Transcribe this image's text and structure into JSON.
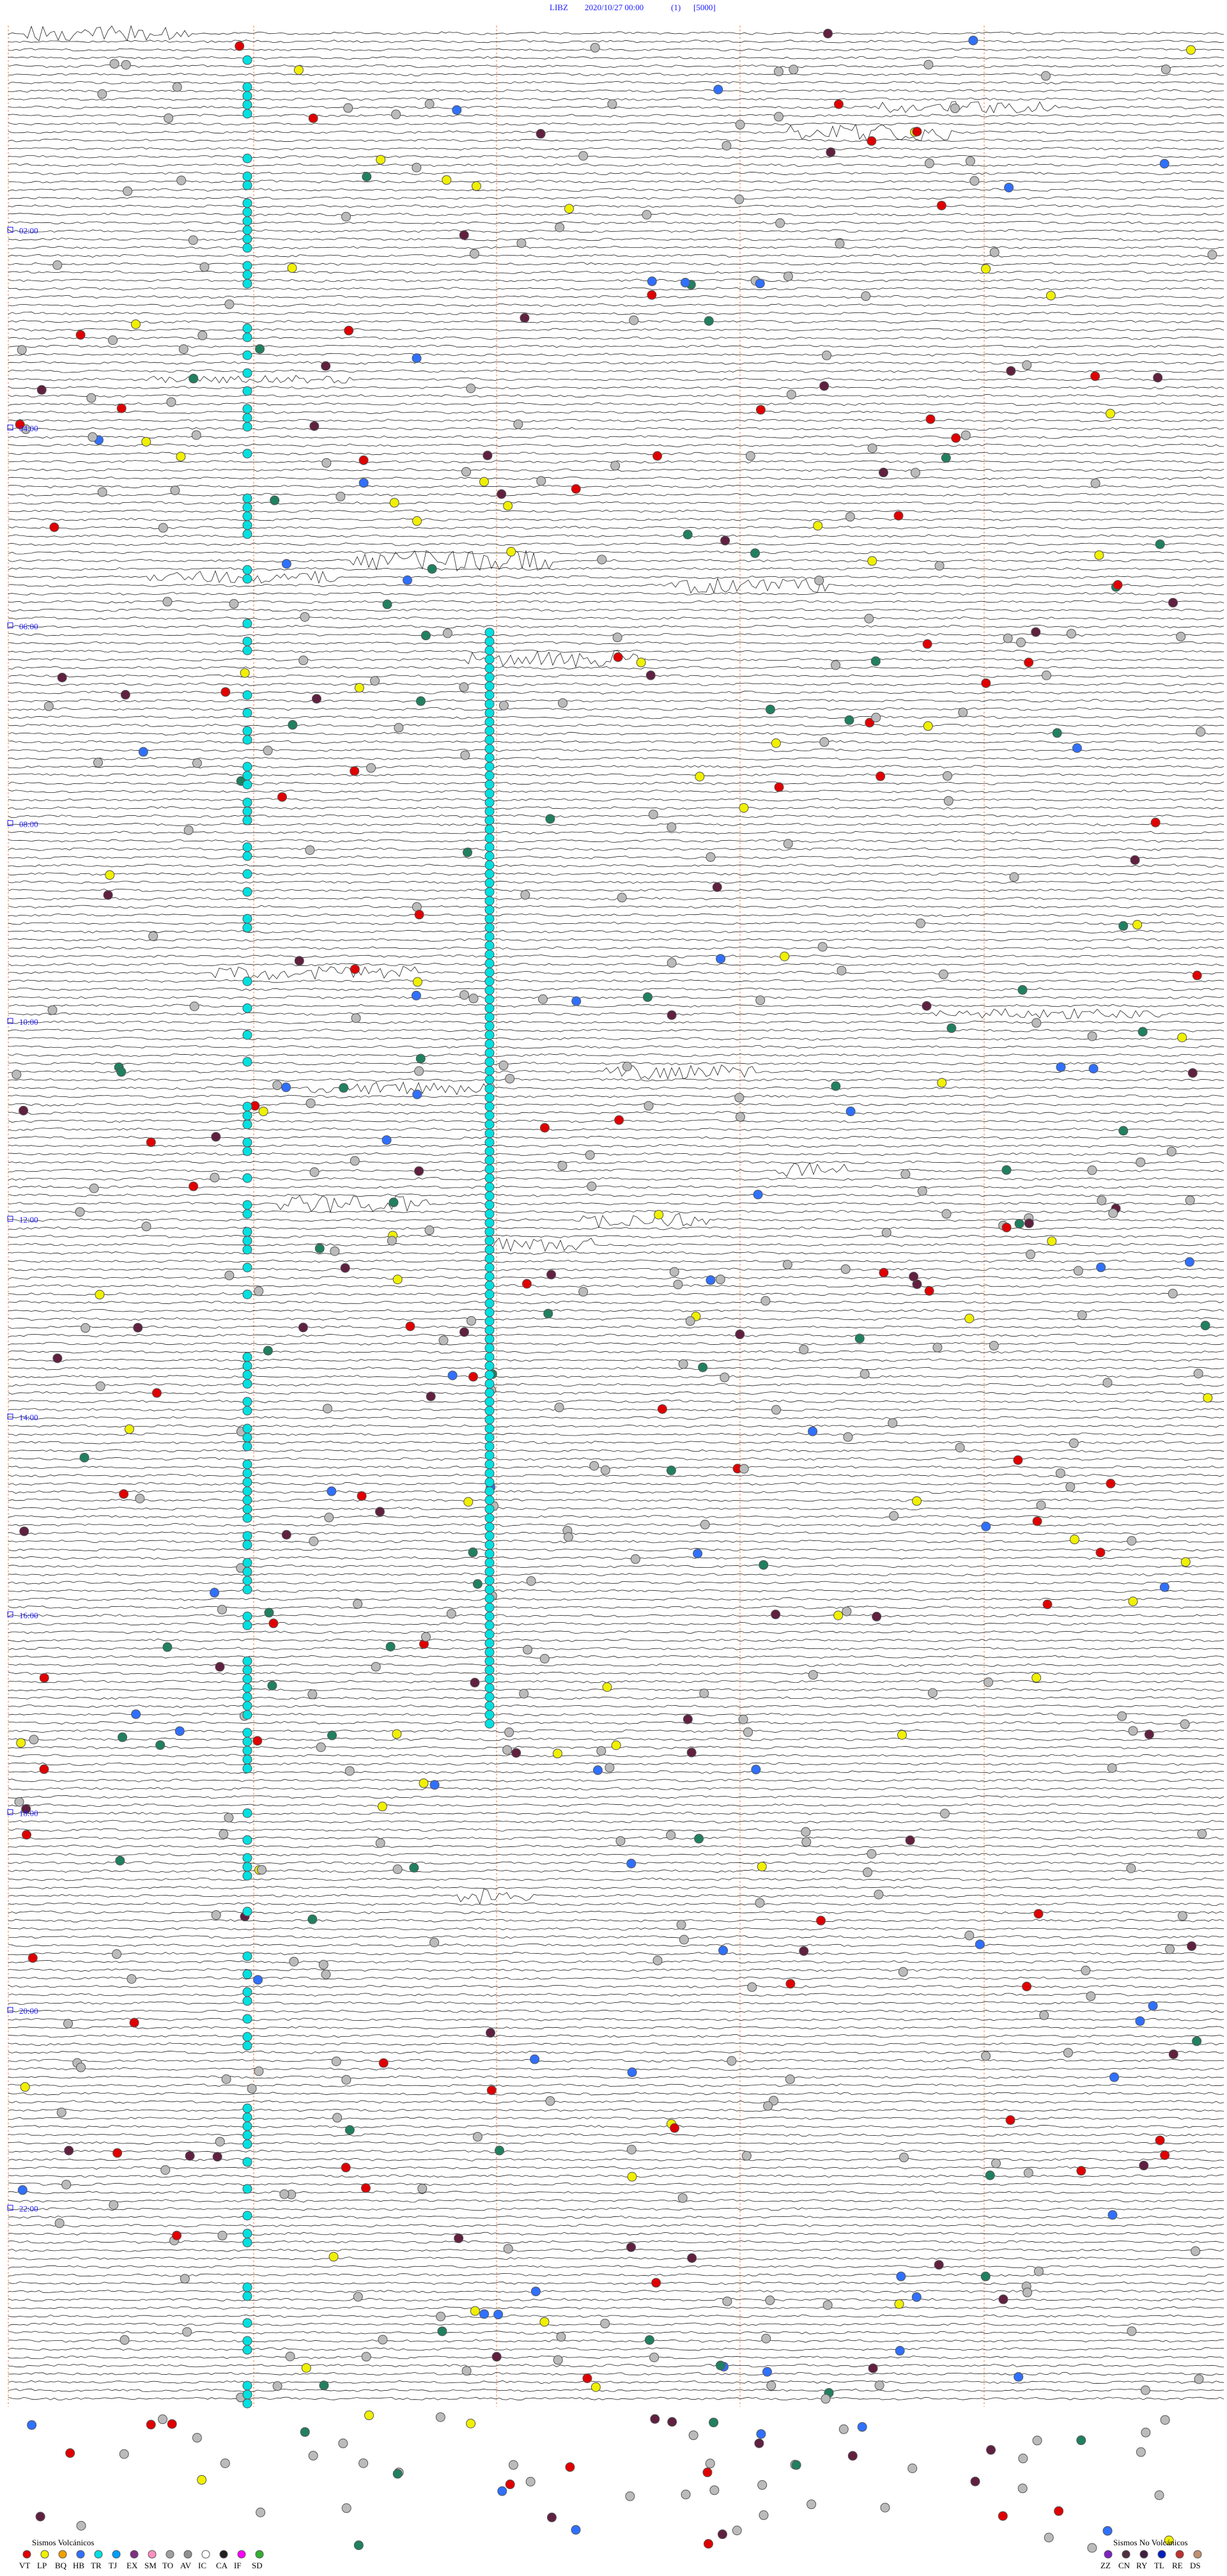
{
  "header": {
    "station": "LIBZ",
    "datetime": "2020/10/27 00:00",
    "channel": "(1)",
    "scale": "[5000]"
  },
  "hour_labels": [
    "02:00",
    "04:00",
    "06:00",
    "08:00",
    "10:00",
    "12:00",
    "14:00",
    "16:00",
    "18:00",
    "20:00",
    "22:00"
  ],
  "legend": {
    "volcanic": {
      "title": "Sismos Volcánicos",
      "codes": [
        {
          "code": "VT",
          "color": "#e00000"
        },
        {
          "code": "LP",
          "color": "#f0f000"
        },
        {
          "code": "BQ",
          "color": "#f0a000"
        },
        {
          "code": "HB",
          "color": "#3070ff"
        },
        {
          "code": "TR",
          "color": "#00e0e0"
        },
        {
          "code": "TJ",
          "color": "#00a0ff"
        },
        {
          "code": "EX",
          "color": "#803080"
        },
        {
          "code": "SM",
          "color": "#ff90c0"
        },
        {
          "code": "TO",
          "color": "#a0a0a0"
        },
        {
          "code": "AV",
          "color": "#909090"
        },
        {
          "code": "IC",
          "color": "#ffffff"
        },
        {
          "code": "CA",
          "color": "#202020"
        },
        {
          "code": "IF",
          "color": "#ff00ff"
        },
        {
          "code": "SD",
          "color": "#30b030"
        }
      ]
    },
    "non_volcanic": {
      "title": "Sismos No Volcánicos",
      "codes": [
        {
          "code": "ZZ",
          "color": "#8020c0"
        },
        {
          "code": "CN",
          "color": "#503040"
        },
        {
          "code": "RY",
          "color": "#402040"
        },
        {
          "code": "TL",
          "color": "#0020c0"
        },
        {
          "code": "RE",
          "color": "#c03030"
        },
        {
          "code": "DS",
          "color": "#c09070"
        }
      ]
    }
  }
}
